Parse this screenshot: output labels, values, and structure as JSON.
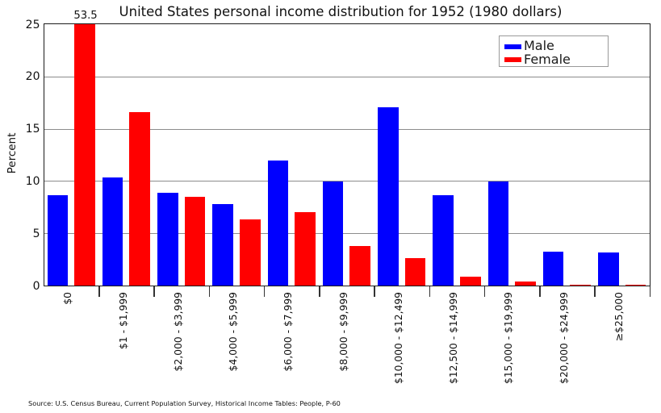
{
  "chart_data": {
    "type": "bar",
    "title": "United States personal income distribution for 1952 (1980 dollars)",
    "ylabel": "Percent",
    "xlabel": "",
    "ylim": [
      0,
      25
    ],
    "yticks": [
      0,
      5,
      10,
      15,
      20,
      25
    ],
    "gridline_values": [
      5,
      10,
      15,
      20
    ],
    "grid": "horizontal",
    "legend_position": "top-right",
    "categories": [
      "$0",
      "$1 - $1,999",
      "$2,000 - $3,999",
      "$4,000 - $5,999",
      "$6,000 - $7,999",
      "$8,000 - $9,999",
      "$10,000 - $12,499",
      "$12,500 - $14,999",
      "$15,000 - $19,999",
      "$20,000 - $24,999",
      "≥$25,000"
    ],
    "series": [
      {
        "name": "Male",
        "color": "#0000ff",
        "values": [
          8.7,
          10.4,
          8.9,
          7.8,
          12.0,
          10.0,
          17.1,
          8.7,
          10.0,
          3.3,
          3.2
        ]
      },
      {
        "name": "Female",
        "color": "#ff0000",
        "values": [
          53.5,
          16.6,
          8.5,
          6.4,
          7.1,
          3.8,
          2.7,
          0.9,
          0.4,
          0.1,
          0.1
        ]
      }
    ],
    "annotation": {
      "text": "53.5",
      "note": "value label above the clipped Female $0 bar"
    },
    "source": "Source: U.S. Census Bureau, Current Population Survey, Historical Income Tables: People, P-60"
  },
  "colors": {
    "male_bar": "#0000ff",
    "female_bar": "#ff0000",
    "grid_line": "#8c8c8c",
    "axis_frame": "#1c1c1c",
    "legend_border": "#9a9a9a",
    "background": "#ffffff",
    "text": "#111111"
  }
}
